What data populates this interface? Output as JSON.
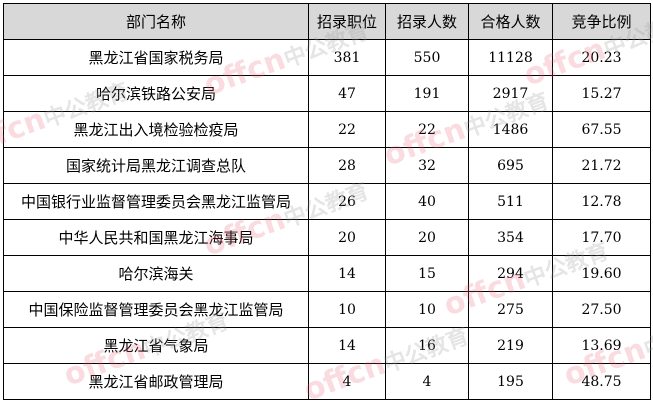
{
  "table": {
    "headers": [
      "部门名称",
      "招录职位",
      "招录人数",
      "合格人数",
      "竞争比例"
    ],
    "rows": [
      [
        "黑龙江省国家税务局",
        "381",
        "550",
        "11128",
        "20.23"
      ],
      [
        "哈尔滨铁路公安局",
        "47",
        "191",
        "2917",
        "15.27"
      ],
      [
        "黑龙江出入境检验检疫局",
        "22",
        "22",
        "1486",
        "67.55"
      ],
      [
        "国家统计局黑龙江调查总队",
        "28",
        "32",
        "695",
        "21.72"
      ],
      [
        "中国银行业监督管理委员会黑龙江监管局",
        "26",
        "40",
        "511",
        "12.78"
      ],
      [
        "中华人民共和国黑龙江海事局",
        "20",
        "20",
        "354",
        "17.70"
      ],
      [
        "哈尔滨海关",
        "14",
        "15",
        "294",
        "19.60"
      ],
      [
        "中国保险监督管理委员会黑龙江监管局",
        "10",
        "10",
        "275",
        "27.50"
      ],
      [
        "黑龙江省气象局",
        "14",
        "16",
        "219",
        "13.69"
      ],
      [
        "黑龙江省邮政管理局",
        "4",
        "4",
        "195",
        "48.75"
      ]
    ]
  },
  "watermark": {
    "brand": "offcn",
    "text": "中公教育",
    "color": "#e65a6e"
  }
}
